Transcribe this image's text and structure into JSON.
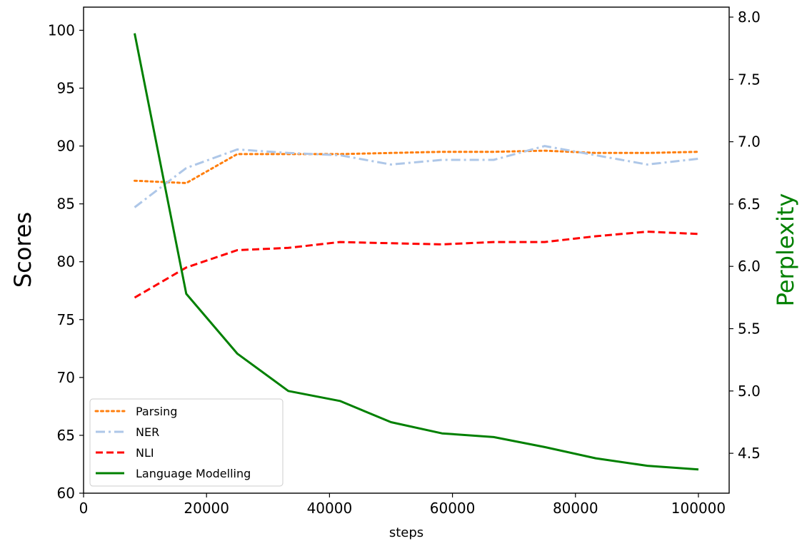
{
  "chart_data": {
    "type": "line",
    "xlabel": "steps",
    "ylabel_left": "Scores",
    "ylabel_right": "Perplexity",
    "xlim": [
      0,
      105000
    ],
    "ylim_left": [
      60,
      102
    ],
    "ylim_right": [
      4.18,
      8.08
    ],
    "x_ticks": [
      0,
      20000,
      40000,
      60000,
      80000,
      100000
    ],
    "y_ticks_left": [
      60,
      65,
      70,
      75,
      80,
      85,
      90,
      95,
      100
    ],
    "y_ticks_right": [
      "4.5",
      "5.0",
      "5.5",
      "6.0",
      "6.5",
      "7.0",
      "7.5",
      "8.0"
    ],
    "y_ticks_right_values": [
      4.5,
      5.0,
      5.5,
      6.0,
      6.5,
      7.0,
      7.5,
      8.0
    ],
    "grid": false,
    "legend_position": "lower-left",
    "x": [
      8300,
      16700,
      25000,
      33300,
      41700,
      50000,
      58300,
      66700,
      75000,
      83300,
      91700,
      100000
    ],
    "series": [
      {
        "name": "Parsing",
        "axis": "left",
        "color": "#ff7f0e",
        "style": "dotted",
        "values": [
          87.0,
          86.8,
          89.3,
          89.3,
          89.3,
          89.4,
          89.5,
          89.5,
          89.6,
          89.4,
          89.4,
          89.5
        ]
      },
      {
        "name": "NER",
        "axis": "left",
        "color": "#aec7e8",
        "style": "dashdot",
        "values": [
          84.7,
          88.1,
          89.7,
          89.4,
          89.2,
          88.4,
          88.8,
          88.8,
          90.0,
          89.2,
          88.4,
          88.9
        ]
      },
      {
        "name": "NLI",
        "axis": "left",
        "color": "#ff0000",
        "style": "dashed",
        "values": [
          76.9,
          79.5,
          81.0,
          81.2,
          81.7,
          81.6,
          81.5,
          81.7,
          81.7,
          82.2,
          82.6,
          82.4
        ]
      },
      {
        "name": "Language Modelling",
        "axis": "right",
        "color": "#008000",
        "style": "solid",
        "values": [
          7.87,
          5.78,
          5.3,
          5.0,
          4.92,
          4.75,
          4.66,
          4.63,
          4.55,
          4.46,
          4.4,
          4.37
        ]
      }
    ]
  }
}
